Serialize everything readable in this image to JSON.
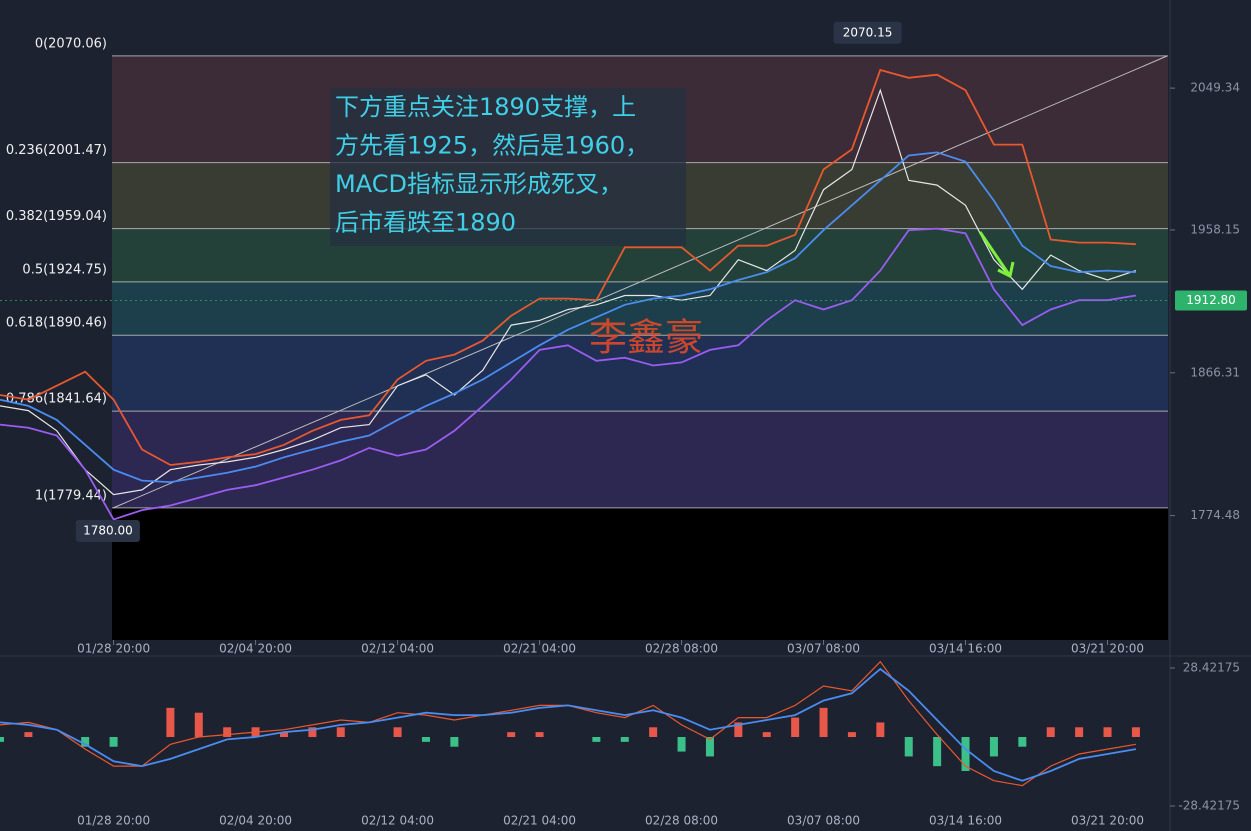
{
  "chart_data": [
    {
      "type": "line",
      "x": [
        0,
        2,
        4,
        6,
        8,
        10,
        12,
        14,
        16,
        18,
        20,
        22,
        24,
        26,
        28,
        30,
        32,
        34,
        36,
        38,
        40,
        42,
        44,
        46,
        48,
        50,
        52,
        54,
        56,
        58,
        60,
        62,
        64,
        66,
        68,
        70,
        72,
        74,
        76,
        78,
        80
      ],
      "series": [
        {
          "color": "#e6e6e6",
          "values": [
            1845,
            1842,
            1829,
            1804,
            1788,
            1791,
            1804,
            1807,
            1809,
            1812,
            1817,
            1823,
            1831,
            1833,
            1858,
            1865,
            1852,
            1868,
            1897,
            1900,
            1907,
            1910,
            1916,
            1916,
            1913,
            1916,
            1939,
            1932,
            1945,
            1984,
            1997,
            2048,
            1990,
            1987,
            1974,
            1939,
            1920,
            1942,
            1932,
            1926,
            1932
          ]
        },
        {
          "color": "#e8582f",
          "values": [
            1852,
            1849,
            1858,
            1867,
            1849,
            1817,
            1807,
            1809,
            1812,
            1814,
            1820,
            1829,
            1836,
            1839,
            1862,
            1874,
            1878,
            1887,
            1903,
            1914,
            1914,
            1913,
            1947,
            1947,
            1947,
            1932,
            1948,
            1948,
            1955,
            1997,
            2010,
            2061,
            2056,
            2058,
            2048,
            2013,
            2013,
            1952,
            1950,
            1950,
            1949
          ]
        },
        {
          "color": "#4a8cf0",
          "values": [
            1849,
            1845,
            1836,
            1820,
            1804,
            1797,
            1796,
            1799,
            1802,
            1806,
            1812,
            1817,
            1822,
            1826,
            1836,
            1845,
            1853,
            1862,
            1873,
            1884,
            1894,
            1902,
            1910,
            1914,
            1916,
            1920,
            1926,
            1931,
            1940,
            1958,
            1974,
            1990,
            2006,
            2008,
            2002,
            1977,
            1948,
            1935,
            1931,
            1932,
            1931
          ]
        },
        {
          "color": "#9b5cf0",
          "values": [
            1833,
            1831,
            1826,
            1804,
            1772,
            1778,
            1781,
            1786,
            1791,
            1794,
            1799,
            1804,
            1810,
            1818,
            1813,
            1817,
            1829,
            1845,
            1862,
            1881,
            1884,
            1874,
            1876,
            1871,
            1873,
            1881,
            1884,
            1900,
            1913,
            1907,
            1913,
            1932,
            1958,
            1959,
            1956,
            1920,
            1897,
            1907,
            1913,
            1913,
            1916
          ]
        }
      ],
      "xlim": [
        0,
        82.4
      ],
      "ylim": [
        1694.5,
        2106
      ],
      "yticks": [
        2049.34,
        1958.15,
        1866.31,
        1774.48
      ],
      "xticks": [
        {
          "value": 8,
          "label": "01/28 20:00"
        },
        {
          "value": 18,
          "label": "02/04 20:00"
        },
        {
          "value": 28,
          "label": "02/12 04:00"
        },
        {
          "value": 38,
          "label": "02/21 04:00"
        },
        {
          "value": 48,
          "label": "02/28 08:00"
        },
        {
          "value": 58,
          "label": "03/07 08:00"
        },
        {
          "value": 68,
          "label": "03/14 16:00"
        },
        {
          "value": 78,
          "label": "03/21 20:00"
        }
      ],
      "fib_levels": [
        {
          "value": 2070.06,
          "label": "0(2070.06)"
        },
        {
          "value": 2001.47,
          "label": "0.236(2001.47)"
        },
        {
          "value": 1959.04,
          "label": "0.382(1959.04)"
        },
        {
          "value": 1924.75,
          "label": "0.5(1924.75)"
        },
        {
          "value": 1890.46,
          "label": "0.618(1890.46)"
        },
        {
          "value": 1841.64,
          "label": "0.786(1841.64)"
        },
        {
          "value": 1779.44,
          "label": "1(1779.44)"
        }
      ],
      "band_colors": [
        "rgba(170,80,80,0.22)",
        "rgba(140,140,60,0.25)",
        "rgba(50,140,80,0.3)",
        "rgba(30,130,140,0.3)",
        "rgba(40,80,170,0.3)",
        "rgba(80,55,160,0.3)",
        "rgba(120,120,130,0.3)"
      ],
      "high": {
        "x": 61.1,
        "value": 2070.15
      },
      "low": {
        "x": 7.6,
        "value": 1780,
        "label": "1780.00"
      },
      "last": {
        "value": 1912.8,
        "label": "1912.80"
      },
      "annotation": [
        "下方重点关注1890支撑，上",
        "方先看1925，然后是1960，",
        "MACD指标显示形成死叉，",
        "后市看跌至1890"
      ],
      "watermark": "李鑫豪"
    },
    {
      "type": "macd",
      "x": [
        0,
        2,
        4,
        6,
        8,
        10,
        12,
        14,
        16,
        18,
        20,
        22,
        24,
        26,
        28,
        30,
        32,
        34,
        36,
        38,
        40,
        42,
        44,
        46,
        48,
        50,
        52,
        54,
        56,
        58,
        60,
        62,
        64,
        66,
        68,
        70,
        72,
        74,
        76,
        78,
        80
      ],
      "series": [
        {
          "color": "#e8582f",
          "values": [
            5,
            6,
            3,
            -5,
            -12,
            -12,
            -3,
            0,
            1,
            2,
            3,
            5,
            7,
            6,
            10,
            9,
            7,
            9,
            11,
            13,
            13,
            10,
            8,
            13,
            5,
            -1,
            8,
            8,
            13,
            21,
            19,
            31,
            15,
            1,
            -12,
            -18,
            -20,
            -12,
            -7,
            -5,
            -3
          ]
        },
        {
          "color": "#4a8cf0",
          "values": [
            6,
            5,
            3,
            -3,
            -10,
            -12,
            -9,
            -5,
            -1,
            0,
            2,
            3,
            5,
            6,
            8,
            10,
            9,
            9,
            10,
            12,
            13,
            11,
            9,
            11,
            8,
            3,
            5,
            7,
            9,
            15,
            18,
            28,
            19,
            7,
            -5,
            -14,
            -18,
            -14,
            -9,
            -7,
            -5
          ]
        }
      ],
      "histogram": [
        -2,
        2,
        0,
        -4,
        -4,
        0,
        12,
        10,
        4,
        4,
        2,
        4,
        4,
        0,
        4,
        -2,
        -4,
        0,
        2,
        2,
        0,
        -2,
        -2,
        4,
        -6,
        -8,
        6,
        2,
        8,
        12,
        2,
        6,
        -8,
        -12,
        -14,
        -8,
        -4,
        4,
        4,
        4,
        4
      ],
      "hist_colors": {
        "up": "#e8584a",
        "down": "#3cc08a"
      },
      "xlim": [
        0,
        82.4
      ],
      "ylim": [
        -38.7,
        31.7
      ],
      "yticks": [
        28.42175,
        -28.42175
      ]
    }
  ]
}
